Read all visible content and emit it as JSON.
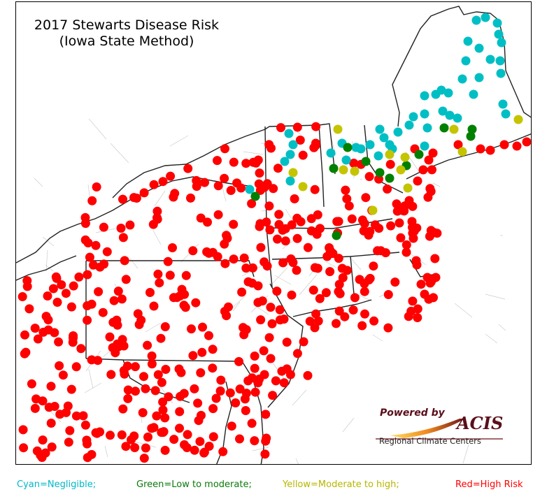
{
  "map": {
    "title_line1": "2017 Stewarts Disease Risk",
    "title_line2": "(Iowa State Method)",
    "risk_colors": {
      "cyan": "#00bfc4",
      "green": "#008000",
      "yellow": "#c4c400",
      "red": "#ff0000"
    },
    "colors": {
      "state_border": "#222222",
      "county_border": "#c8c8c8",
      "background": "#ffffff"
    }
  },
  "logo": {
    "powered_by": "Powered by",
    "name": "ACIS",
    "subtitle": "Regional Climate Centers"
  },
  "legend": {
    "cyan": "Cyan=Negligible;",
    "green": "Green=Low to moderate;",
    "yellow": "Yellow=Moderate to high;",
    "red": "Red=High Risk"
  }
}
